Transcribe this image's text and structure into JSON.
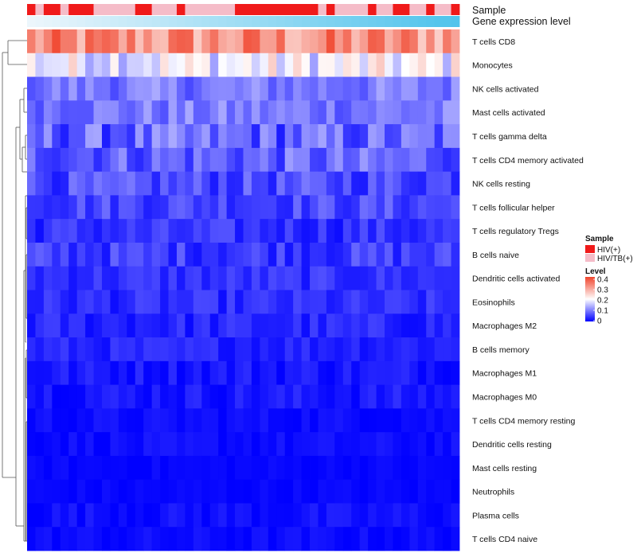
{
  "chart_data": {
    "type": "heatmap",
    "title": "",
    "annotation_labels": {
      "sample": "Sample",
      "gene_expression": "Gene expression level"
    },
    "sample_groups": [
      "HIV(+)",
      "HIV/TB(+)"
    ],
    "sample_group_colors": {
      "HIV(+)": "#f01a1a",
      "HIV/TB(+)": "#f5bcc8"
    },
    "sample_annotation": [
      0,
      1,
      0,
      0,
      1,
      0,
      0,
      0,
      1,
      1,
      1,
      1,
      1,
      0,
      0,
      1,
      1,
      1,
      0,
      1,
      1,
      1,
      1,
      1,
      1,
      0,
      0,
      0,
      0,
      0,
      0,
      0,
      0,
      0,
      0,
      1,
      0,
      1,
      1,
      1,
      1,
      0,
      1,
      1,
      0,
      0,
      1,
      1,
      0,
      1,
      1,
      0
    ],
    "gene_expression_level": [
      0.0,
      0.02,
      0.04,
      0.06,
      0.08,
      0.1,
      0.12,
      0.14,
      0.16,
      0.18,
      0.2,
      0.22,
      0.24,
      0.26,
      0.28,
      0.3,
      0.32,
      0.34,
      0.36,
      0.38,
      0.4,
      0.42,
      0.44,
      0.46,
      0.48,
      0.5,
      0.52,
      0.54,
      0.56,
      0.58,
      0.6,
      0.62,
      0.64,
      0.66,
      0.68,
      0.7,
      0.72,
      0.74,
      0.76,
      0.78,
      0.8,
      0.82,
      0.84,
      0.86,
      0.88,
      0.9,
      0.92,
      0.94,
      0.96,
      0.98,
      0.99,
      1.0
    ],
    "rows": [
      "T cells CD8",
      "Monocytes",
      "NK cells activated",
      "Mast cells activated",
      "T cells gamma delta",
      "T cells CD4 memory activated",
      "NK cells resting",
      "T cells follicular helper",
      "T cells regulatory  Tregs",
      "B cells naive",
      "Dendritic cells activated",
      "Eosinophils",
      "Macrophages M2",
      "B cells memory",
      "Macrophages M1",
      "Macrophages M0",
      "T cells CD4 memory resting",
      "Dendritic cells resting",
      "Mast cells resting",
      "Neutrophils",
      "Plasma cells",
      "T cells CD4 naive"
    ],
    "row_means": [
      0.33,
      0.2,
      0.1,
      0.1,
      0.08,
      0.08,
      0.06,
      0.06,
      0.04,
      0.05,
      0.04,
      0.035,
      0.03,
      0.03,
      0.02,
      0.02,
      0.01,
      0.01,
      0.005,
      0.005,
      0.012,
      0.008
    ],
    "row_spread": [
      0.08,
      0.07,
      0.04,
      0.04,
      0.06,
      0.05,
      0.04,
      0.035,
      0.03,
      0.035,
      0.025,
      0.025,
      0.025,
      0.02,
      0.02,
      0.02,
      0.012,
      0.012,
      0.008,
      0.008,
      0.015,
      0.012
    ],
    "legend": {
      "sample_title": "Sample",
      "level_title": "Level",
      "level_ticks": [
        "0.4",
        "0.3",
        "0.2",
        "0.1",
        "0"
      ],
      "level_range": [
        0,
        0.42
      ],
      "level_colors": [
        "#0000ff",
        "#ffffff",
        "#f0442c"
      ]
    }
  }
}
